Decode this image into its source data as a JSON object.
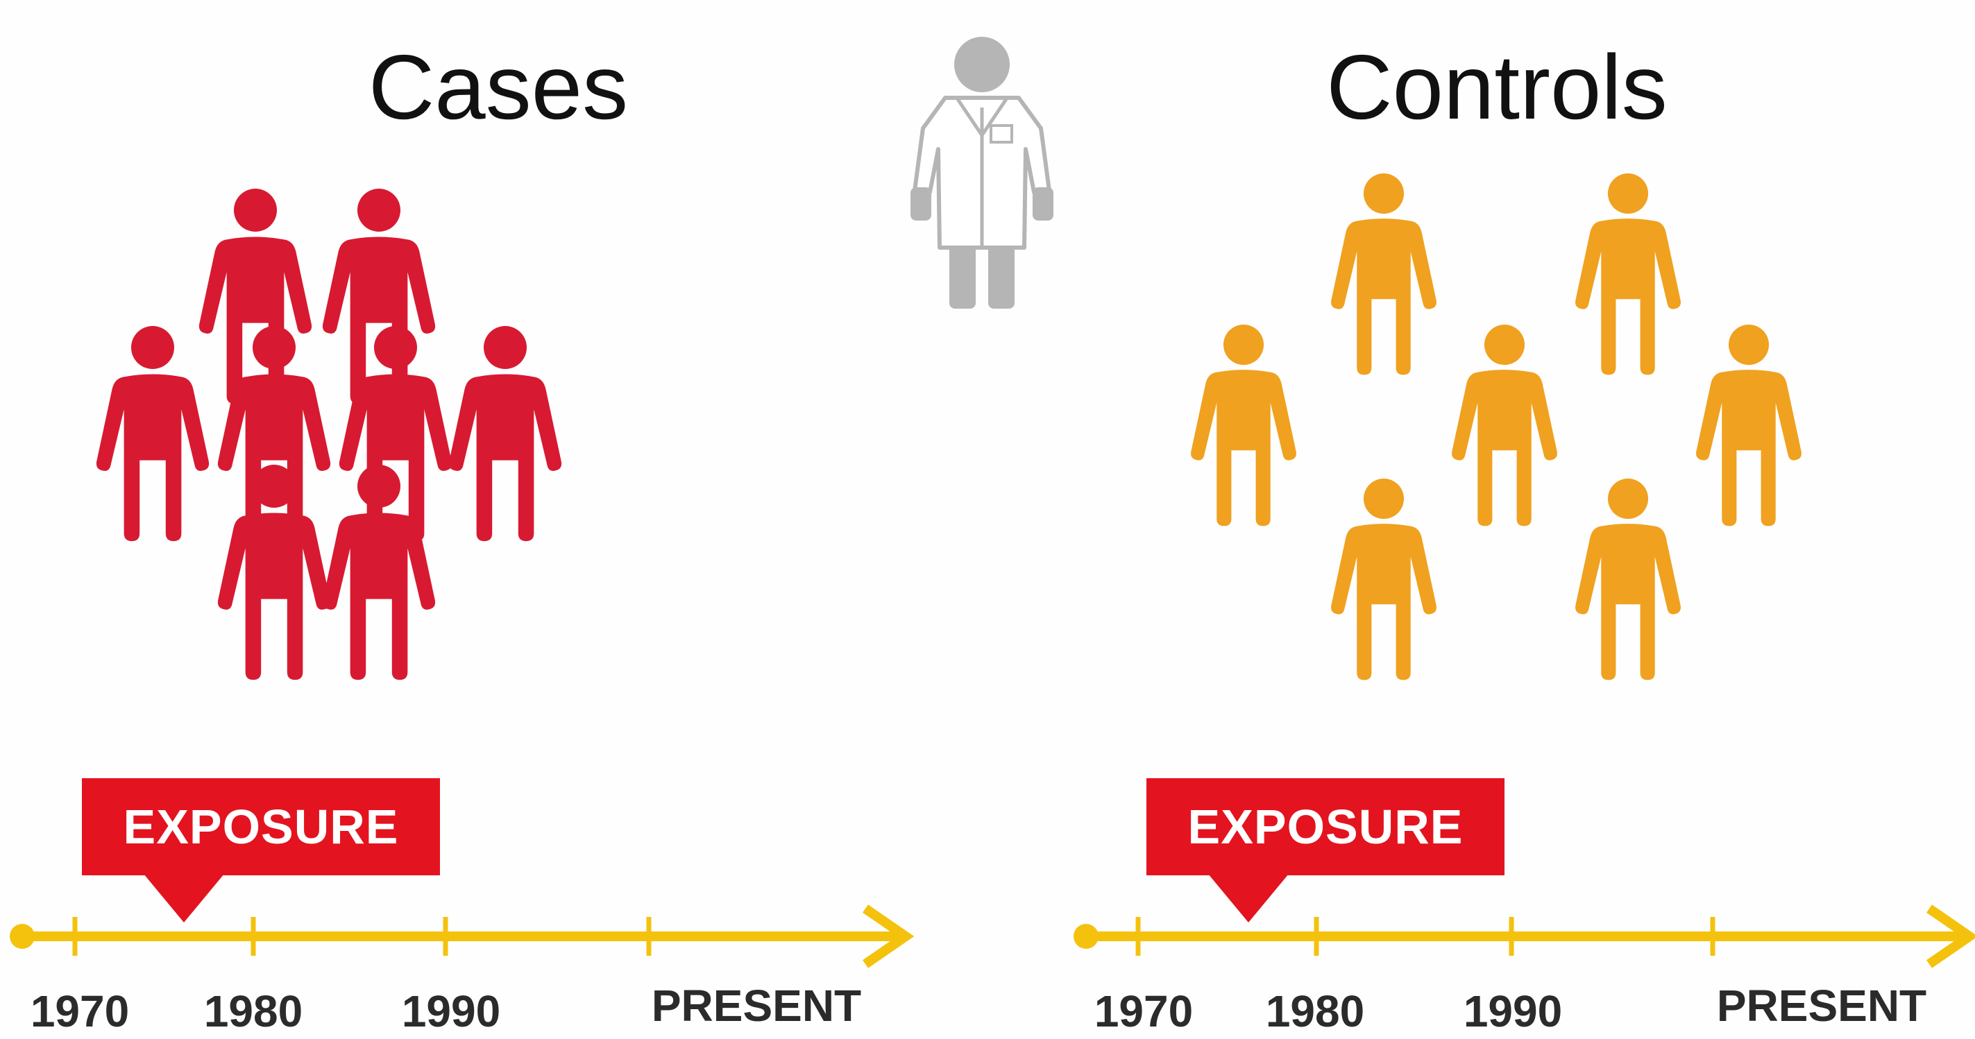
{
  "groups": [
    {
      "id": "cases",
      "title": "Cases",
      "color": "#d71a31",
      "exposure_label": "EXPOSURE",
      "exposure_color": "#e3141f",
      "timeline_ticks": [
        "1970",
        "1980",
        "1990",
        "PRESENT"
      ]
    },
    {
      "id": "controls",
      "title": "Controls",
      "color": "#f0a11f",
      "exposure_label": "EXPOSURE",
      "exposure_color": "#e3141f",
      "timeline_ticks": [
        "1970",
        "1980",
        "1990",
        "PRESENT"
      ]
    }
  ],
  "icons": {
    "person": "person-icon",
    "researcher": "researcher-icon"
  },
  "colors": {
    "timeline": "#f4c20d",
    "researcher": "#b5b5b5",
    "background": "#fefefe"
  }
}
